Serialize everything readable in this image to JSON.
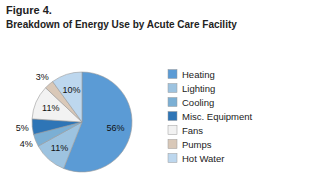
{
  "chart_data": {
    "type": "pie",
    "title": "Figure 4.",
    "subtitle": "Breakdown of Energy Use by Acute Care Facility",
    "categories": [
      "Heating",
      "Lighting",
      "Cooling",
      "Misc. Equipment",
      "Fans",
      "Pumps",
      "Hot Water"
    ],
    "values": [
      56,
      11,
      4,
      5,
      11,
      3,
      10
    ],
    "value_labels": [
      "56%",
      "11%",
      "4%",
      "5%",
      "11%",
      "3%",
      "10%"
    ],
    "colors": [
      "#5b9bd5",
      "#9dc3e0",
      "#7bafd4",
      "#2e75b6",
      "#f2f2f2",
      "#d9c8b8",
      "#bdd7ee"
    ],
    "data_labels": true,
    "legend": "right"
  }
}
